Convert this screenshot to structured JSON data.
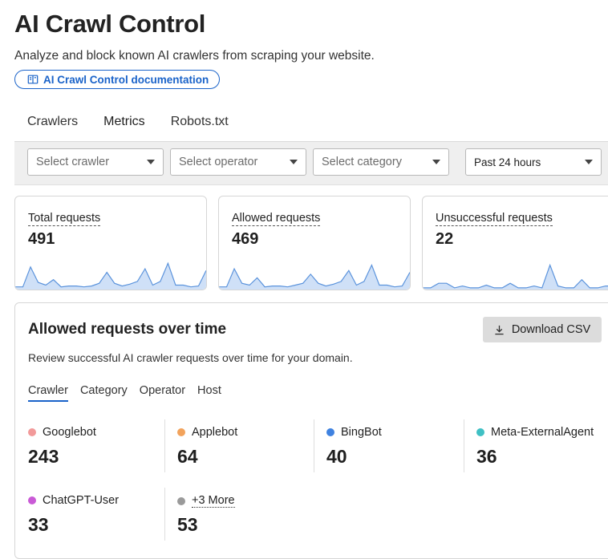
{
  "header": {
    "title": "AI Crawl Control",
    "subtitle": "Analyze and block known AI crawlers from scraping your website.",
    "doc_link_label": "AI Crawl Control documentation",
    "doc_link_color": "#1a63c9"
  },
  "tabs": [
    {
      "label": "Crawlers",
      "active": false
    },
    {
      "label": "Metrics",
      "active": true
    },
    {
      "label": "Robots.txt",
      "active": false
    }
  ],
  "filters": {
    "crawler_placeholder": "Select crawler",
    "operator_placeholder": "Select operator",
    "category_placeholder": "Select category",
    "time_range": "Past 24 hours"
  },
  "stats": [
    {
      "label": "Total requests",
      "value": "491",
      "spark": [
        2,
        2,
        24,
        7,
        4,
        10,
        2,
        3,
        3,
        2,
        3,
        6,
        18,
        6,
        3,
        5,
        8,
        22,
        4,
        8,
        28,
        4,
        4,
        2,
        3,
        20
      ]
    },
    {
      "label": "Allowed requests",
      "value": "469",
      "spark": [
        2,
        2,
        22,
        6,
        4,
        12,
        2,
        3,
        3,
        2,
        4,
        6,
        16,
        6,
        3,
        5,
        8,
        20,
        4,
        8,
        26,
        4,
        4,
        2,
        3,
        18
      ]
    },
    {
      "label": "Unsuccessful requests",
      "value": "22",
      "spark": [
        1,
        1,
        6,
        6,
        1,
        3,
        1,
        1,
        4,
        1,
        1,
        6,
        1,
        1,
        3,
        1,
        26,
        3,
        1,
        1,
        10,
        1,
        1,
        3,
        3
      ]
    }
  ],
  "chart_card": {
    "title": "Allowed requests over time",
    "download_label": "Download CSV",
    "description": "Review successful AI crawler requests over time for your domain.",
    "subtabs": [
      {
        "label": "Crawler",
        "active": true
      },
      {
        "label": "Category",
        "active": false
      },
      {
        "label": "Operator",
        "active": false
      },
      {
        "label": "Host",
        "active": false
      }
    ],
    "metrics": [
      {
        "name": "Googlebot",
        "value": "243",
        "color": "#f29a9a"
      },
      {
        "name": "Applebot",
        "value": "64",
        "color": "#f2a35c"
      },
      {
        "name": "BingBot",
        "value": "40",
        "color": "#3f82e0"
      },
      {
        "name": "Meta-ExternalAgent",
        "value": "36",
        "color": "#3fc0c4"
      },
      {
        "name": "ChatGPT-User",
        "value": "33",
        "color": "#c95ad6"
      },
      {
        "name": "+3 More",
        "value": "53",
        "color": "#9a9a9a"
      }
    ]
  }
}
